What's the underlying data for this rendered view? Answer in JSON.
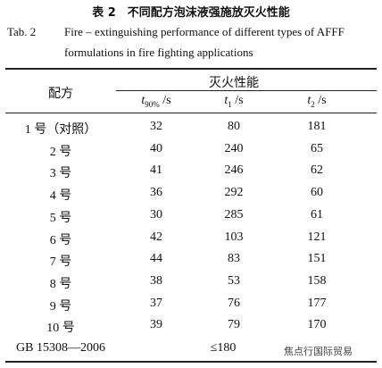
{
  "header": {
    "title": "表 2　不同配方泡沫液强施放灭火性能",
    "en_label": "Tab. 2",
    "en_lines": [
      "Fire – extinguishing performance of different types of AFFF",
      "formulations in fire fighting applications"
    ]
  },
  "table": {
    "group_header": "配方",
    "span_header": "灭火性能",
    "columns": [
      {
        "var": "t",
        "sub": "90%",
        "unit": " /s"
      },
      {
        "var": "t",
        "sub": "1",
        "unit": " /s"
      },
      {
        "var": "t",
        "sub": "2",
        "unit": " /s"
      }
    ],
    "rows": [
      [
        "1 号（对照）",
        "32",
        "80",
        "181"
      ],
      [
        "2 号",
        "40",
        "240",
        "65"
      ],
      [
        "3 号",
        "41",
        "246",
        "62"
      ],
      [
        "4 号",
        "36",
        "292",
        "60"
      ],
      [
        "5 号",
        "30",
        "285",
        "61"
      ],
      [
        "6 号",
        "42",
        "103",
        "121"
      ],
      [
        "7 号",
        "44",
        "83",
        "151"
      ],
      [
        "8 号",
        "38",
        "53",
        "158"
      ],
      [
        "9 号",
        "37",
        "76",
        "177"
      ],
      [
        "10 号",
        "39",
        "79",
        "170"
      ]
    ],
    "standard_row": [
      "GB 15308—2006",
      "≤180"
    ]
  },
  "watermark": "焦点行国际贸易"
}
